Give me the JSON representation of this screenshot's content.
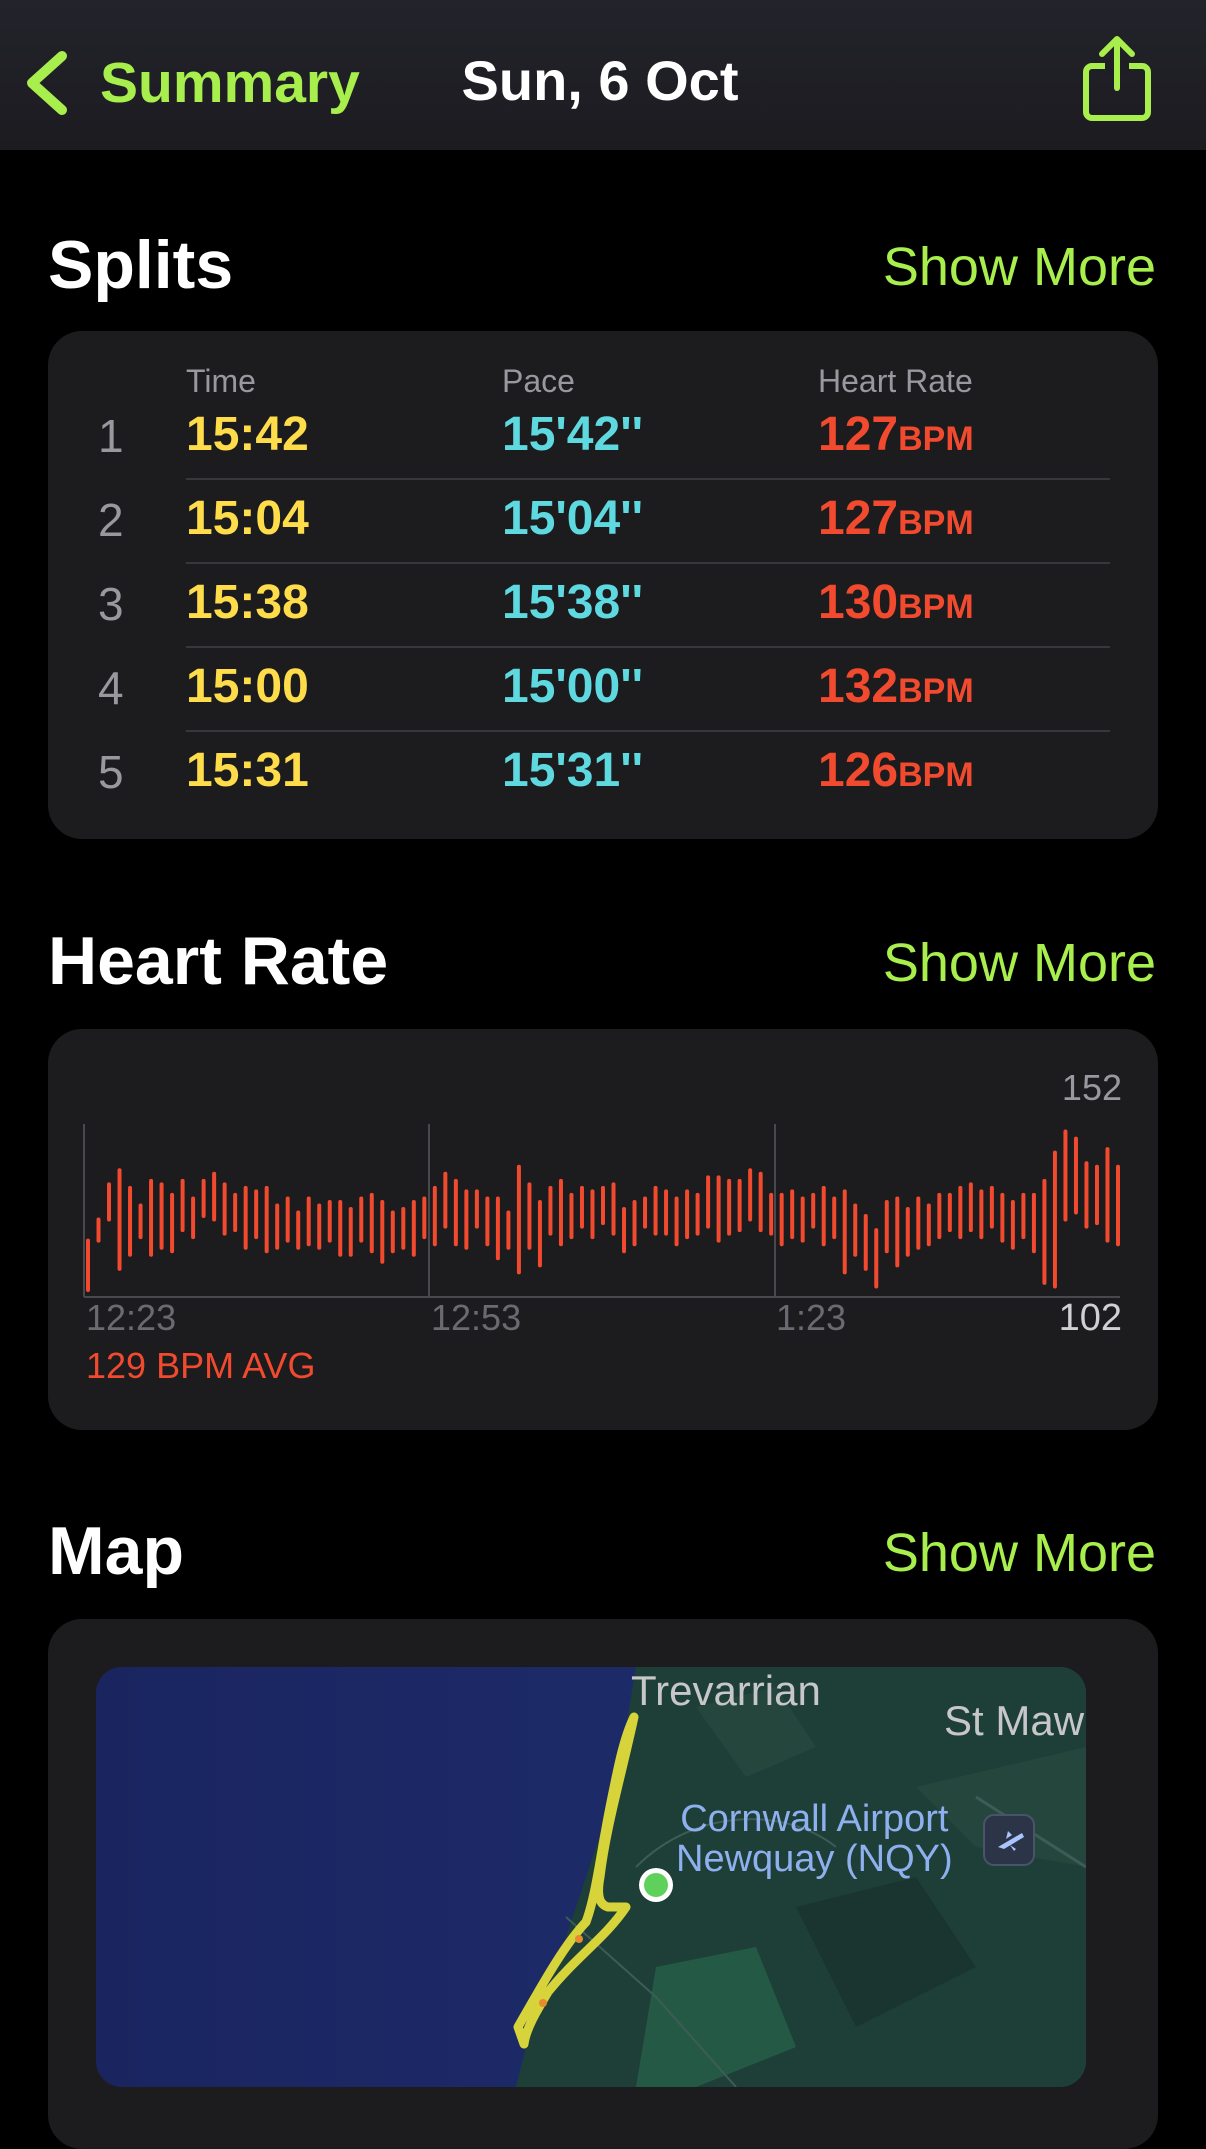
{
  "nav": {
    "back_label": "Summary",
    "title": "Sun, 6 Oct"
  },
  "splits": {
    "title": "Splits",
    "show_more": "Show More",
    "columns": {
      "time": "Time",
      "pace": "Pace",
      "heart_rate": "Heart Rate"
    },
    "hr_unit": "BPM",
    "rows": [
      {
        "index": "1",
        "time": "15:42",
        "pace": "15'42''",
        "hr": "127"
      },
      {
        "index": "2",
        "time": "15:04",
        "pace": "15'04''",
        "hr": "127"
      },
      {
        "index": "3",
        "time": "15:38",
        "pace": "15'38''",
        "hr": "130"
      },
      {
        "index": "4",
        "time": "15:00",
        "pace": "15'00''",
        "hr": "132"
      },
      {
        "index": "5",
        "time": "15:31",
        "pace": "15'31''",
        "hr": "126"
      }
    ]
  },
  "heart_rate": {
    "title": "Heart Rate",
    "show_more": "Show More",
    "max_label": "152",
    "min_label": "102",
    "avg_label": "129 BPM AVG",
    "time_ticks": [
      "12:23",
      "12:53",
      "1:23"
    ]
  },
  "chart_data": {
    "type": "bar",
    "title": "",
    "xlabel": "",
    "ylabel": "",
    "ylim": [
      102,
      152
    ],
    "x_tick_labels": [
      "12:23",
      "12:53",
      "1:23"
    ],
    "color": "#f24a2e",
    "ranges": [
      [
        104,
        118
      ],
      [
        118,
        124
      ],
      [
        124,
        134
      ],
      [
        110,
        138
      ],
      [
        114,
        133
      ],
      [
        119,
        128
      ],
      [
        114,
        135
      ],
      [
        116,
        134
      ],
      [
        115,
        131
      ],
      [
        121,
        135
      ],
      [
        119,
        130
      ],
      [
        125,
        135
      ],
      [
        124,
        137
      ],
      [
        120,
        134
      ],
      [
        121,
        131
      ],
      [
        116,
        133
      ],
      [
        119,
        132
      ],
      [
        115,
        133
      ],
      [
        116,
        128
      ],
      [
        118,
        130
      ],
      [
        116,
        126
      ],
      [
        117,
        130
      ],
      [
        116,
        128
      ],
      [
        118,
        129
      ],
      [
        114,
        129
      ],
      [
        114,
        127
      ],
      [
        118,
        130
      ],
      [
        115,
        131
      ],
      [
        112,
        129
      ],
      [
        115,
        126
      ],
      [
        116,
        127
      ],
      [
        114,
        129
      ],
      [
        119,
        130
      ],
      [
        117,
        133
      ],
      [
        122,
        137
      ],
      [
        117,
        135
      ],
      [
        116,
        132
      ],
      [
        122,
        132
      ],
      [
        117,
        130
      ],
      [
        113,
        130
      ],
      [
        116,
        126
      ],
      [
        109,
        139
      ],
      [
        116,
        134
      ],
      [
        111,
        129
      ],
      [
        120,
        133
      ],
      [
        117,
        135
      ],
      [
        119,
        131
      ],
      [
        122,
        133
      ],
      [
        119,
        132
      ],
      [
        123,
        133
      ],
      [
        120,
        134
      ],
      [
        115,
        127
      ],
      [
        117,
        129
      ],
      [
        122,
        130
      ],
      [
        120,
        133
      ],
      [
        120,
        132
      ],
      [
        117,
        130
      ],
      [
        119,
        132
      ],
      [
        120,
        131
      ],
      [
        122,
        136
      ],
      [
        118,
        136
      ],
      [
        120,
        135
      ],
      [
        121,
        135
      ],
      [
        124,
        138
      ],
      [
        121,
        137
      ],
      [
        120,
        131
      ],
      [
        117,
        131
      ],
      [
        119,
        132
      ],
      [
        118,
        130
      ],
      [
        122,
        131
      ],
      [
        117,
        133
      ],
      [
        119,
        130
      ],
      [
        109,
        132
      ],
      [
        114,
        128
      ],
      [
        110,
        125
      ],
      [
        105,
        121
      ],
      [
        115,
        129
      ],
      [
        111,
        130
      ],
      [
        114,
        127
      ],
      [
        116,
        130
      ],
      [
        117,
        128
      ],
      [
        119,
        131
      ],
      [
        121,
        131
      ],
      [
        119,
        133
      ],
      [
        121,
        134
      ],
      [
        119,
        132
      ],
      [
        122,
        133
      ],
      [
        118,
        131
      ],
      [
        116,
        129
      ],
      [
        119,
        131
      ],
      [
        115,
        131
      ],
      [
        106,
        135
      ],
      [
        105,
        143
      ],
      [
        124,
        149
      ],
      [
        126,
        147
      ],
      [
        122,
        140
      ],
      [
        123,
        139
      ],
      [
        118,
        144
      ],
      [
        117,
        139
      ]
    ]
  },
  "map": {
    "title": "Map",
    "show_more": "Show More",
    "labels": {
      "town1": "Trevarrian",
      "town2": "St Maw",
      "airport_line1": "Cornwall Airport",
      "airport_line2": "Newquay (NQY)"
    },
    "colors": {
      "sea": "#1c2a66",
      "land": "#1e3f38",
      "route": "#d6d43a",
      "start": "#5ed05c"
    }
  },
  "colors": {
    "accent": "#a8ee4c",
    "time": "#fedc4a",
    "pace": "#5fd9e0",
    "heart": "#f24a2e"
  }
}
